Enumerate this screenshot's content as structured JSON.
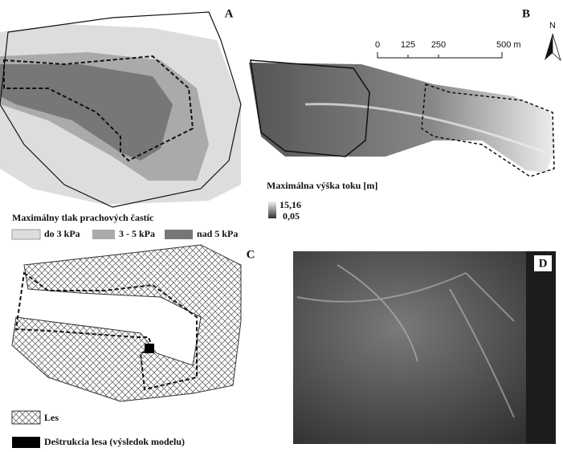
{
  "panels": {
    "a": {
      "letter": "A",
      "legend": {
        "title": "Maximálny tlak prachových častíc",
        "items": [
          "do 3 kPa",
          "3 - 5 kPa",
          "nad 5 kPa"
        ]
      }
    },
    "b": {
      "letter": "B",
      "north": "N",
      "scale_bar": [
        "0",
        "125",
        "250",
        "500 m"
      ],
      "legend": {
        "title": "Maximálna výška toku [m]",
        "max": "15,16",
        "min": "0,05"
      }
    },
    "c": {
      "letter": "C",
      "legend": [
        "Les",
        "Deštrukcia lesa (výsledok modelu)"
      ]
    },
    "d": {
      "letter": "D"
    }
  }
}
